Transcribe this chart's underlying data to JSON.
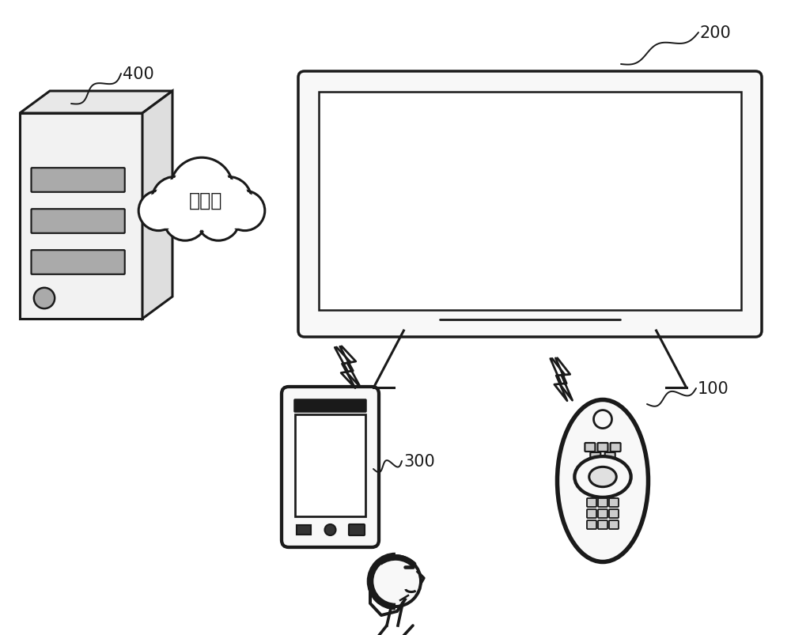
{
  "background_color": "#ffffff",
  "label_400": "400",
  "label_200": "200",
  "label_300": "300",
  "label_100": "100",
  "cloud_text": "互联网",
  "line_color": "#1a1a1a",
  "label_fontsize": 15,
  "cloud_fontsize": 17
}
